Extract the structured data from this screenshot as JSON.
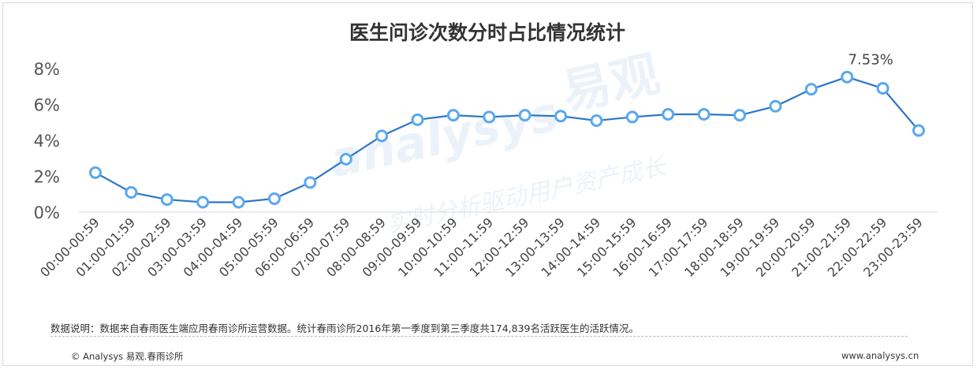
{
  "chart_data": {
    "type": "line",
    "title": "医生问诊次数分时占比情况统计",
    "categories": [
      "00:00-00:59",
      "01:00-01:59",
      "02:00-02:59",
      "03:00-03:59",
      "04:00-04:59",
      "05:00-05:59",
      "06:00-06:59",
      "07:00-07:59",
      "08:00-08:59",
      "09:00-09:59",
      "10:00-10:59",
      "11:00-11:59",
      "12:00-12:59",
      "13:00-13:59",
      "14:00-14:59",
      "15:00-15:59",
      "16:00-16:59",
      "17:00-17:59",
      "18:00-18:59",
      "19:00-19:59",
      "20:00-20:59",
      "21:00-21:59",
      "22:00-22:59",
      "23:00-23:59"
    ],
    "values": [
      2.2,
      1.1,
      0.7,
      0.55,
      0.55,
      0.75,
      1.65,
      2.95,
      4.25,
      5.15,
      5.4,
      5.3,
      5.4,
      5.35,
      5.1,
      5.3,
      5.45,
      5.45,
      5.4,
      5.9,
      6.85,
      7.53,
      6.9,
      4.55
    ],
    "yticks": [
      "0%",
      "2%",
      "4%",
      "6%",
      "8%"
    ],
    "ylim": [
      0,
      8
    ],
    "peak_label": "7.53%",
    "line_color": "#2e75c8",
    "marker_fill": "#ffffff",
    "marker_stroke": "#5aa8ee"
  },
  "watermark": {
    "brand": "易观",
    "latin": "analysys",
    "slogan": "实时分析驱动用户资产成长"
  },
  "footer": {
    "note": "数据说明：数据来自春雨医生端应用春雨诊所运营数据。统计春雨诊所2016年第一季度到第三季度共174,839名活跃医生的活跃情况。",
    "copyright": "© Analysys 易观.春雨诊所",
    "website": "www.analysys.cn"
  }
}
